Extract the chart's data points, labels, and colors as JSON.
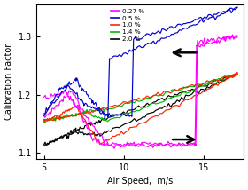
{
  "xlabel": "Air Speed,  m/s",
  "ylabel": "Calibration Factor",
  "xlim": [
    4.5,
    17.5
  ],
  "ylim": [
    1.09,
    1.355
  ],
  "xticks": [
    5,
    10,
    15
  ],
  "yticks": [
    1.1,
    1.2,
    1.3
  ],
  "legend_labels": [
    "0.27 %",
    "0.5 %",
    "1.0 %",
    "1.4 %",
    "2.0 %"
  ],
  "legend_colors": [
    "#ff00ff",
    "#0000cc",
    "#ff2200",
    "#00bb00",
    "#000000"
  ],
  "background_color": "#ffffff"
}
